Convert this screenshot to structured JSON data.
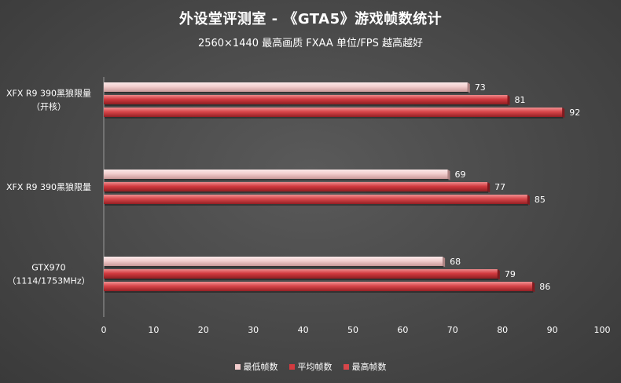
{
  "chart_data": {
    "type": "bar",
    "orientation": "horizontal",
    "title": "外设堂评测室 - 《GTA5》游戏帧数统计",
    "subtitle": "2560×1440  最高画质  FXAA  单位/FPS   越高越好",
    "categories": [
      [
        "XFX R9 390黑狼限量",
        "（开核）"
      ],
      [
        "XFX R9 390黑狼限量"
      ],
      [
        "GTX970",
        "（1114/1753MHz）"
      ]
    ],
    "series": [
      {
        "name": "最低帧数",
        "values": [
          73,
          69,
          68
        ],
        "color": "#f2cccc"
      },
      {
        "name": "平均帧数",
        "values": [
          81,
          77,
          79
        ],
        "color": "#d23a3f"
      },
      {
        "name": "最高帧数",
        "values": [
          92,
          85,
          86
        ],
        "color": "#d8464a"
      }
    ],
    "xlim": [
      0,
      100
    ],
    "xticks": [
      0,
      10,
      20,
      30,
      40,
      50,
      60,
      70,
      80,
      90,
      100
    ],
    "grid": false,
    "legend_position": "bottom"
  }
}
